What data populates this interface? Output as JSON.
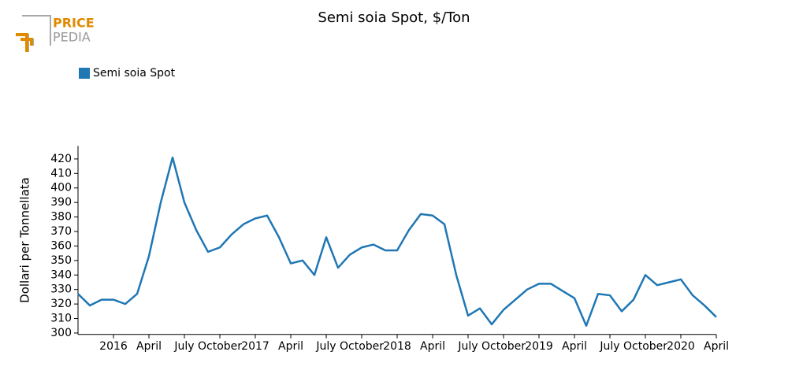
{
  "logo": {
    "line1": "PRICE",
    "line2": "PEDIA"
  },
  "chart_data": {
    "type": "line",
    "title": "Semi soia Spot, $/Ton",
    "y_label": "Dollari per Tonnellata",
    "categories": [
      null,
      null,
      null,
      "2016",
      null,
      null,
      "April",
      null,
      null,
      "July",
      null,
      null,
      "October",
      null,
      null,
      "2017",
      null,
      null,
      "April",
      null,
      null,
      "July",
      null,
      null,
      "October",
      null,
      null,
      "2018",
      null,
      null,
      "April",
      null,
      null,
      "July",
      null,
      null,
      "October",
      null,
      null,
      "2019",
      null,
      null,
      "April",
      null,
      null,
      "July",
      null,
      null,
      "October",
      null,
      null,
      "2020",
      null,
      null,
      "April"
    ],
    "series": [
      {
        "name": "Semi soia Spot",
        "color": "#1f77b4",
        "values": [
          327,
          319,
          323,
          323,
          320,
          327,
          353,
          390,
          421,
          390,
          371,
          356,
          359,
          368,
          375,
          379,
          381,
          366,
          348,
          350,
          340,
          366,
          345,
          354,
          359,
          361,
          357,
          357,
          371,
          382,
          381,
          375,
          340,
          312,
          317,
          306,
          316,
          323,
          330,
          334,
          334,
          329,
          324,
          305,
          327,
          326,
          315,
          323,
          340,
          333,
          335,
          337,
          326,
          319,
          311
        ]
      }
    ],
    "ylim": [
      299,
      429
    ],
    "yticks": [
      300,
      310,
      320,
      330,
      340,
      350,
      360,
      370,
      380,
      390,
      400,
      410,
      420
    ],
    "legend": "top-left",
    "grid": false
  }
}
